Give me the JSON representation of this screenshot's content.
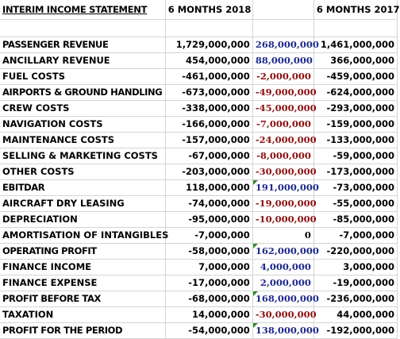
{
  "header": {
    "title": "INTERIM INCOME STATEMENT",
    "col_2018": "6 MONTHS 2018",
    "col_diff": "",
    "col_2017": "6 MONTHS 2017"
  },
  "rows": [
    {
      "label": "PASSENGER REVENUE",
      "y2018": "1,729,000,000",
      "diff": "268,000,000",
      "y2017": "1,461,000,000"
    },
    {
      "label": "ANCILLARY REVENUE",
      "y2018": "454,000,000",
      "diff": "88,000,000",
      "y2017": "366,000,000"
    },
    {
      "label": "FUEL COSTS",
      "y2018": "-461,000,000",
      "diff": "-2,000,000",
      "y2017": "-459,000,000"
    },
    {
      "label": "AIRPORTS & GROUND HANDLING",
      "y2018": "-673,000,000",
      "diff": "-49,000,000",
      "y2017": "-624,000,000"
    },
    {
      "label": "CREW COSTS",
      "y2018": "-338,000,000",
      "diff": "-45,000,000",
      "y2017": "-293,000,000"
    },
    {
      "label": "NAVIGATION COSTS",
      "y2018": "-166,000,000",
      "diff": "-7,000,000",
      "y2017": "-159,000,000"
    },
    {
      "label": "MAINTENANCE COSTS",
      "y2018": "-157,000,000",
      "diff": "-24,000,000",
      "y2017": "-133,000,000"
    },
    {
      "label": "SELLING & MARKETING COSTS",
      "y2018": "-67,000,000",
      "diff": "-8,000,000",
      "y2017": "-59,000,000"
    },
    {
      "label": "OTHER COSTS",
      "y2018": "-203,000,000",
      "diff": "-30,000,000",
      "y2017": "-173,000,000"
    },
    {
      "label": "EBITDAR",
      "y2018": "118,000,000",
      "diff": "191,000,000",
      "y2017": "-73,000,000"
    },
    {
      "label": "AIRCRAFT DRY LEASING",
      "y2018": "-74,000,000",
      "diff": "-19,000,000",
      "y2017": "-55,000,000"
    },
    {
      "label": "DEPRECIATION",
      "y2018": "-95,000,000",
      "diff": "-10,000,000",
      "y2017": "-85,000,000"
    },
    {
      "label": "AMORTISATION OF INTANGIBLES",
      "y2018": "-7,000,000",
      "diff": "0",
      "y2017": "-7,000,000"
    },
    {
      "label": "OPERATING PROFIT",
      "y2018": "-58,000,000",
      "diff": "162,000,000",
      "y2017": "-220,000,000"
    },
    {
      "label": "FINANCE INCOME",
      "y2018": "7,000,000",
      "diff": "4,000,000",
      "y2017": "3,000,000"
    },
    {
      "label": "FINANCE EXPENSE",
      "y2018": "-17,000,000",
      "diff": "2,000,000",
      "y2017": "-19,000,000"
    },
    {
      "label": "PROFIT BEFORE TAX",
      "y2018": "-68,000,000",
      "diff": "168,000,000",
      "y2017": "-236,000,000"
    },
    {
      "label": "TAXATION",
      "y2018": "14,000,000",
      "diff": "-30,000,000",
      "y2017": "44,000,000"
    },
    {
      "label": "PROFIT FOR THE PERIOD",
      "y2018": "-54,000,000",
      "diff": "138,000,000",
      "y2017": "-192,000,000"
    }
  ],
  "colors": {
    "positive_diff": "#1f2a8c",
    "negative_diff": "#8b1010",
    "comment_flag": "#2e8b2e"
  }
}
